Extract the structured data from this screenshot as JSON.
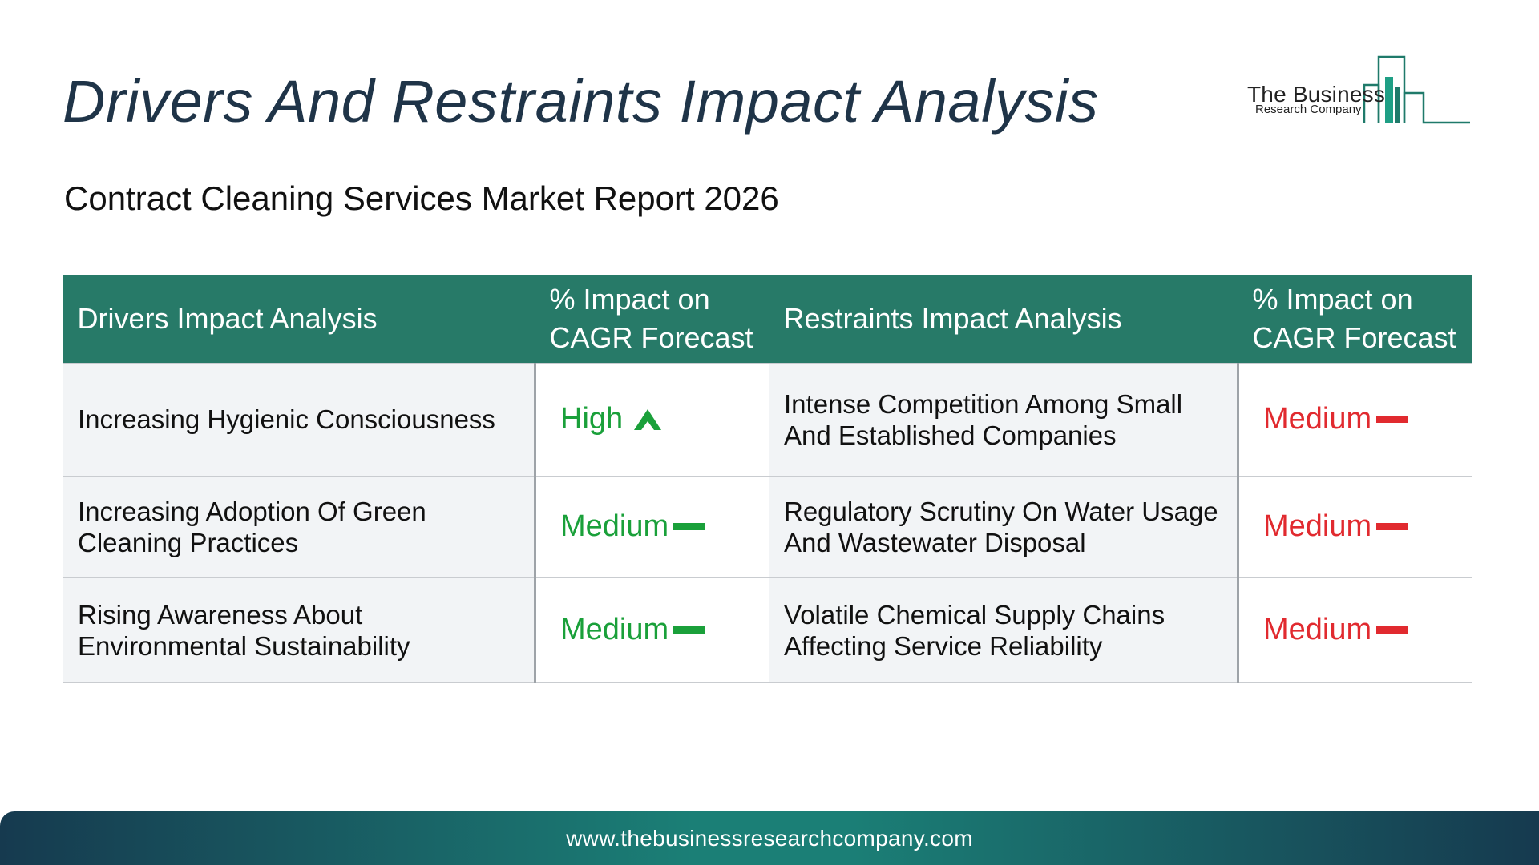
{
  "title": "Drivers And Restraints Impact Analysis",
  "subtitle": "Contract Cleaning Services Market Report 2026",
  "logo": {
    "main": "The Business",
    "sub": "Research Company",
    "icon": "bar-chart-logo-icon"
  },
  "table": {
    "headers": {
      "drivers": "Drivers Impact Analysis",
      "drivers_impact": "% Impact on CAGR Forecast",
      "restraints": "Restraints Impact Analysis",
      "restraints_impact": "% Impact on CAGR Forecast"
    },
    "rows": [
      {
        "driver": "Increasing Hygienic Consciousness",
        "driver_impact": "High",
        "driver_icon": "arrow-up-icon",
        "restraint": "Intense Competition Among Small And Established Companies",
        "restraint_impact": "Medium",
        "restraint_icon": "dash-icon"
      },
      {
        "driver": "Increasing Adoption Of Green Cleaning Practices",
        "driver_impact": "Medium",
        "driver_icon": "dash-icon",
        "restraint": "Regulatory Scrutiny On Water Usage And Wastewater Disposal",
        "restraint_impact": "Medium",
        "restraint_icon": "dash-icon"
      },
      {
        "driver": "Rising Awareness About Environmental Sustainability",
        "driver_impact": "Medium",
        "driver_icon": "dash-icon",
        "restraint": "Volatile Chemical Supply Chains Affecting Service Reliability",
        "restraint_impact": "Medium",
        "restraint_icon": "dash-icon"
      }
    ]
  },
  "colors": {
    "header_bg": "#277a68",
    "driver_impact": "#1aa03a",
    "restraint_impact": "#e12a2f",
    "title": "#1f3448"
  },
  "footer": {
    "url": "www.thebusinessresearchcompany.com"
  }
}
